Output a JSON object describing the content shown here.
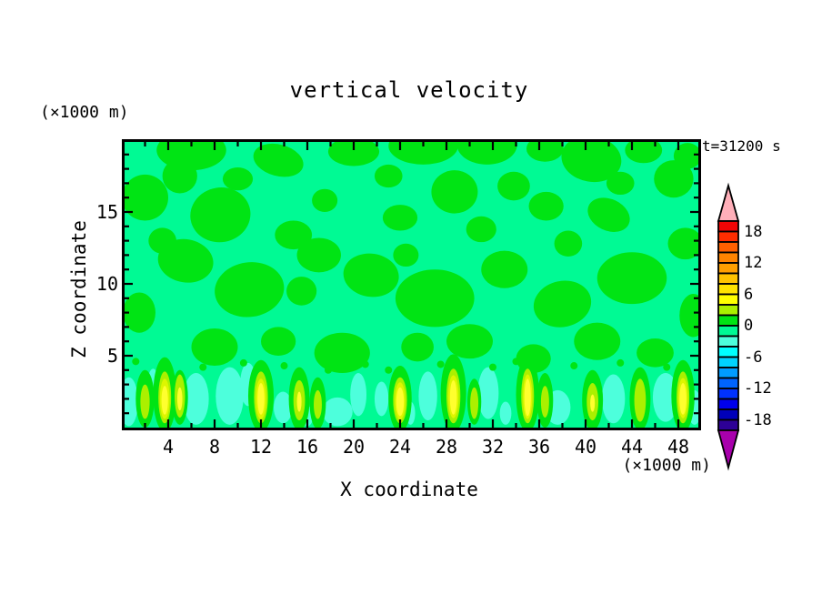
{
  "chart_data": {
    "type": "heatmap",
    "title": "vertical velocity",
    "time_label": "t=31200 s",
    "xlabel": "X coordinate",
    "ylabel": "Z coordinate",
    "x_units": "(×1000 m)",
    "y_units": "(×1000 m)",
    "xlim": [
      0,
      49.6
    ],
    "ylim": [
      0,
      19.9
    ],
    "x_major_ticks": [
      4,
      8,
      12,
      16,
      20,
      24,
      28,
      32,
      36,
      40,
      44,
      48
    ],
    "x_minor_tick_step": 2,
    "y_major_ticks": [
      5,
      10,
      15
    ],
    "y_minor_tick_step": 1,
    "grid": false,
    "legend_position": "right",
    "colorbar": {
      "vmax": 20,
      "vmin": -20,
      "cell_step": 2,
      "labels": [
        18,
        12,
        6,
        0,
        -6,
        -12,
        -18
      ],
      "cell_colors_top_to_bottom": [
        "#F00505",
        "#FF2D00",
        "#FF6000",
        "#FF8400",
        "#FF9F00",
        "#FFC300",
        "#FFE300",
        "#FFFF00",
        "#ABF000",
        "#00E414",
        "#00FA94",
        "#4DFFDC",
        "#00FFFF",
        "#00D2FF",
        "#009CFF",
        "#0064FF",
        "#0032FF",
        "#0000EB",
        "#0000B9",
        "#2D0096"
      ],
      "over_arrow_color": "#FFAFB9",
      "under_arrow_color": "#A800AC"
    },
    "field": {
      "background_color": "#00FA94",
      "patch_color": "#00E414",
      "cyan_color": "#4DFFDC",
      "chartreuse_color": "#ABF000",
      "yellowgreen_color": "#DDF600",
      "yellow_color": "#FFFF2E",
      "background_band": "0 to -2",
      "patch_band": "0 to 2",
      "green_patches": [
        [
          6,
          19.3,
          3,
          1.4,
          0
        ],
        [
          13.5,
          18.6,
          2.2,
          1.1,
          15
        ],
        [
          2,
          16,
          2,
          1.6,
          0
        ],
        [
          5,
          17.5,
          1.5,
          1.2,
          0
        ],
        [
          8.5,
          14.8,
          2.6,
          1.9,
          -10
        ],
        [
          14.8,
          13.4,
          1.6,
          1.0,
          0
        ],
        [
          20,
          19.2,
          2.2,
          1.0,
          0
        ],
        [
          26,
          19.6,
          3,
          1.3,
          0
        ],
        [
          31.5,
          19.7,
          2.6,
          1.4,
          0
        ],
        [
          36.5,
          19.4,
          1.6,
          0.9,
          0
        ],
        [
          40.5,
          18.7,
          2.6,
          1.6,
          10
        ],
        [
          45,
          19.3,
          1.6,
          0.9,
          0
        ],
        [
          48.8,
          18.9,
          1.2,
          0.9,
          0
        ],
        [
          28.7,
          16.4,
          2.0,
          1.5,
          0
        ],
        [
          24,
          14.6,
          1.5,
          0.9,
          0
        ],
        [
          33.8,
          16.8,
          1.4,
          1.0,
          0
        ],
        [
          42,
          14.8,
          1.9,
          1.1,
          25
        ],
        [
          47.6,
          17.3,
          1.7,
          1.3,
          0
        ],
        [
          5.5,
          11.6,
          2.4,
          1.5,
          10
        ],
        [
          11,
          9.6,
          3,
          1.9,
          -8
        ],
        [
          17,
          12,
          1.9,
          1.2,
          0
        ],
        [
          21.5,
          10.6,
          2.4,
          1.5,
          8
        ],
        [
          27,
          9,
          3.4,
          2,
          0
        ],
        [
          31,
          13.8,
          1.3,
          0.9,
          0
        ],
        [
          33,
          11,
          2,
          1.3,
          0
        ],
        [
          38,
          8.6,
          2.5,
          1.6,
          -12
        ],
        [
          44,
          10.4,
          3,
          1.8,
          0
        ],
        [
          48.6,
          12.8,
          1.5,
          1.1,
          0
        ],
        [
          1.5,
          8,
          1.4,
          1.4,
          0
        ],
        [
          36.6,
          15.4,
          1.5,
          1.0,
          0
        ],
        [
          8,
          5.6,
          2,
          1.3,
          0
        ],
        [
          13.5,
          6,
          1.5,
          1.0,
          0
        ],
        [
          19,
          5.2,
          2.4,
          1.4,
          0
        ],
        [
          25.5,
          5.6,
          1.4,
          1.0,
          0
        ],
        [
          30,
          6,
          2,
          1.2,
          0
        ],
        [
          35.5,
          4.8,
          1.5,
          1.0,
          0
        ],
        [
          41,
          6,
          2,
          1.3,
          0
        ],
        [
          46,
          5.2,
          1.6,
          1.0,
          0
        ],
        [
          49.3,
          7.8,
          1.2,
          1.5,
          0
        ],
        [
          3.5,
          13,
          1.2,
          0.9,
          0
        ],
        [
          23,
          17.5,
          1.2,
          0.8,
          0
        ],
        [
          10,
          17.3,
          1.3,
          0.8,
          0
        ],
        [
          17.5,
          15.8,
          1.1,
          0.8,
          0
        ],
        [
          38.5,
          12.8,
          1.2,
          0.9,
          0
        ],
        [
          43,
          17,
          1.2,
          0.8,
          0
        ],
        [
          15.5,
          9.5,
          1.3,
          1.0,
          0
        ],
        [
          24.5,
          12,
          1.1,
          0.8,
          0
        ]
      ],
      "downdraft_patches": [
        [
          0.6,
          1.8,
          0.8,
          1.7
        ],
        [
          2.7,
          2.9,
          0.5,
          1.2
        ],
        [
          6.4,
          2.0,
          1.1,
          1.8
        ],
        [
          9.3,
          2.2,
          1.2,
          2.0
        ],
        [
          10.9,
          3.0,
          0.7,
          1.5
        ],
        [
          13.9,
          1.4,
          0.8,
          1.1
        ],
        [
          18.6,
          1.1,
          1.3,
          1.0
        ],
        [
          20.4,
          2.3,
          0.7,
          1.5
        ],
        [
          22.4,
          2.0,
          0.6,
          1.2
        ],
        [
          26.4,
          2.2,
          0.8,
          1.7
        ],
        [
          31.6,
          2.4,
          0.9,
          1.8
        ],
        [
          33.1,
          1.0,
          0.5,
          0.8
        ],
        [
          37.6,
          1.4,
          1.1,
          1.2
        ],
        [
          42.4,
          2.0,
          1.0,
          1.7
        ],
        [
          46.9,
          2.1,
          1.1,
          1.7
        ],
        [
          49.4,
          1.4,
          0.6,
          1.2
        ],
        [
          24.9,
          1.0,
          0.4,
          0.8
        ],
        [
          16.0,
          0.8,
          0.5,
          0.7
        ]
      ],
      "updraft_plumes": [
        {
          "x": 2.0,
          "layers": [
            [
              "g",
              0.8,
              2.0,
              2.0
            ],
            [
              "c",
              0.4,
              1.2,
              1.8
            ]
          ]
        },
        {
          "x": 3.7,
          "layers": [
            [
              "g",
              1.0,
              2.6,
              2.3
            ],
            [
              "c",
              0.55,
              1.8,
              2.1
            ],
            [
              "yg",
              0.42,
              1.4,
              2.0
            ],
            [
              "y",
              0.28,
              1.0,
              1.9
            ]
          ]
        },
        {
          "x": 5.0,
          "layers": [
            [
              "g",
              0.7,
              1.9,
              2.1
            ],
            [
              "c",
              0.45,
              1.5,
              2.2
            ],
            [
              "y",
              0.22,
              0.8,
              2.0
            ]
          ]
        },
        {
          "x": 12.0,
          "layers": [
            [
              "g",
              1.1,
              2.5,
              2.2
            ],
            [
              "c",
              0.6,
              1.8,
              2.1
            ],
            [
              "yg",
              0.45,
              1.4,
              2.0
            ],
            [
              "y",
              0.3,
              1.1,
              2.0
            ]
          ]
        },
        {
          "x": 15.3,
          "layers": [
            [
              "g",
              0.9,
              2.2,
              2.0
            ],
            [
              "c",
              0.5,
              1.4,
              1.9
            ],
            [
              "y",
              0.2,
              0.7,
              1.8
            ]
          ]
        },
        {
          "x": 16.9,
          "layers": [
            [
              "g",
              0.7,
              1.8,
              1.7
            ],
            [
              "c",
              0.35,
              1.0,
              1.6
            ]
          ]
        },
        {
          "x": 24.0,
          "layers": [
            [
              "g",
              1.0,
              2.3,
              2.0
            ],
            [
              "c",
              0.6,
              1.6,
              1.9
            ],
            [
              "yg",
              0.45,
              1.3,
              1.85
            ],
            [
              "y",
              0.33,
              1.0,
              1.8
            ]
          ]
        },
        {
          "x": 28.6,
          "layers": [
            [
              "g",
              1.1,
              2.7,
              2.4
            ],
            [
              "c",
              0.6,
              1.9,
              2.2
            ],
            [
              "yg",
              0.45,
              1.5,
              2.15
            ],
            [
              "y",
              0.3,
              1.2,
              2.1
            ]
          ]
        },
        {
          "x": 30.4,
          "layers": [
            [
              "g",
              0.6,
              1.6,
              1.8
            ],
            [
              "c",
              0.35,
              1.1,
              1.7
            ]
          ]
        },
        {
          "x": 35.0,
          "layers": [
            [
              "g",
              1.0,
              2.6,
              2.3
            ],
            [
              "c",
              0.55,
              1.9,
              2.2
            ],
            [
              "yg",
              0.4,
              1.55,
              2.15
            ],
            [
              "y",
              0.28,
              1.3,
              2.1
            ]
          ]
        },
        {
          "x": 36.5,
          "layers": [
            [
              "g",
              0.7,
              1.9,
              1.9
            ],
            [
              "c",
              0.35,
              1.1,
              1.8
            ]
          ]
        },
        {
          "x": 40.6,
          "layers": [
            [
              "g",
              0.9,
              2.1,
              1.9
            ],
            [
              "c",
              0.5,
              1.3,
              1.8
            ],
            [
              "y",
              0.2,
              0.6,
              1.7
            ]
          ]
        },
        {
          "x": 44.7,
          "layers": [
            [
              "g",
              0.9,
              2.2,
              2.0
            ],
            [
              "c",
              0.5,
              1.5,
              1.9
            ]
          ]
        },
        {
          "x": 48.4,
          "layers": [
            [
              "g",
              1.0,
              2.5,
              2.2
            ],
            [
              "c",
              0.55,
              1.8,
              2.1
            ],
            [
              "yg",
              0.42,
              1.4,
              2.05
            ],
            [
              "y",
              0.3,
              1.1,
              2.0
            ]
          ]
        }
      ],
      "speckles": [
        [
          1.2,
          4.6
        ],
        [
          7,
          4.2
        ],
        [
          10.5,
          4.5
        ],
        [
          14,
          4.3
        ],
        [
          21,
          4.4
        ],
        [
          23,
          4.0
        ],
        [
          27.5,
          4.4
        ],
        [
          32,
          4.2
        ],
        [
          39,
          4.3
        ],
        [
          43,
          4.5
        ],
        [
          47,
          4.2
        ],
        [
          17.8,
          4.0
        ],
        [
          34,
          4.6
        ]
      ]
    }
  }
}
